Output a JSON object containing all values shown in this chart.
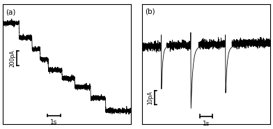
{
  "panel_a_label": "(a)",
  "panel_b_label": "(b)",
  "scale_bar_a_text": "200pA",
  "scale_bar_b_text": "10pA",
  "time_bar_text": "1s",
  "background_color": "#ffffff",
  "line_color": "#000000",
  "border_color": "#000000",
  "noise_seed_a": 42,
  "noise_seed_b": 7,
  "figsize": [
    3.92,
    1.85
  ],
  "dpi": 100
}
